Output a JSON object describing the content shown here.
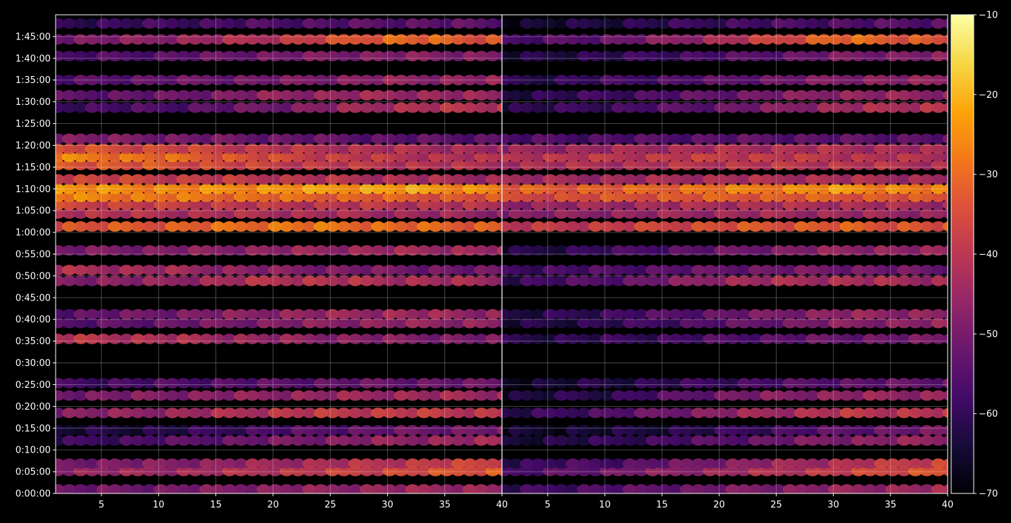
{
  "chart_data": {
    "type": "heatmap",
    "title": "",
    "colormap": "inferno",
    "background": "#000000",
    "foreground": "#ffffff",
    "grid": true,
    "panels": [
      {
        "name": "",
        "xlim": [
          1,
          40
        ],
        "xticks": [
          "5",
          "10",
          "15",
          "20",
          "25",
          "30",
          "35",
          "40"
        ]
      },
      {
        "name": "",
        "xlim": [
          1,
          40
        ],
        "xticks": [
          "5",
          "10",
          "15",
          "20",
          "25",
          "30",
          "35",
          "40"
        ]
      }
    ],
    "y_axis": {
      "ylim_seconds": [
        0,
        6600
      ],
      "tick_labels": [
        "0:00:00",
        "0:05:00",
        "0:10:00",
        "0:15:00",
        "0:20:00",
        "0:25:00",
        "0:30:00",
        "0:35:00",
        "0:40:00",
        "0:45:00",
        "0:50:00",
        "0:55:00",
        "1:00:00",
        "1:05:00",
        "1:10:00",
        "1:15:00",
        "1:20:00",
        "1:25:00",
        "1:30:00",
        "1:35:00",
        "1:40:00",
        "1:45:00"
      ]
    },
    "colorbar": {
      "range": [
        -70,
        -10
      ],
      "tick_labels": [
        "−70",
        "−60",
        "−50",
        "−40",
        "−30",
        "−20",
        "−10"
      ]
    },
    "rows": [
      {
        "t": 55,
        "level": [
          -52,
          -50,
          -47,
          -45,
          -44
        ],
        "right_level": [
          -60,
          -55,
          -50,
          -46,
          -44
        ]
      },
      {
        "t": 310,
        "level": [
          -46,
          -44,
          -40,
          -36,
          -32
        ],
        "right_level": [
          -58,
          -50,
          -44,
          -38,
          -32
        ]
      },
      {
        "t": 410,
        "level": [
          -50,
          -48,
          -44,
          -40,
          -36
        ],
        "right_level": [
          -60,
          -56,
          -48,
          -42,
          -36
        ]
      },
      {
        "t": 730,
        "level": [
          -60,
          -55,
          -50,
          -46,
          -44
        ],
        "right_level": [
          -64,
          -60,
          -54,
          -48,
          -45
        ]
      },
      {
        "t": 870,
        "level": [
          -64,
          -62,
          -56,
          -52,
          -50
        ],
        "right_level": [
          -66,
          -64,
          -60,
          -54,
          -50
        ]
      },
      {
        "t": 1110,
        "level": [
          -48,
          -45,
          -40,
          -38,
          -40
        ],
        "right_level": [
          -62,
          -55,
          -46,
          -40,
          -40
        ]
      },
      {
        "t": 1350,
        "level": [
          -50,
          -48,
          -46,
          -44,
          -44
        ],
        "right_level": [
          -64,
          -60,
          -50,
          -46,
          -45
        ]
      },
      {
        "t": 1520,
        "level": [
          -58,
          -56,
          -54,
          -52,
          -52
        ],
        "right_level": [
          -66,
          -62,
          -58,
          -54,
          -52
        ]
      },
      {
        "t": 2130,
        "level": [
          -40,
          -42,
          -46,
          -48,
          -50
        ],
        "right_level": [
          -62,
          -60,
          -56,
          -52,
          -50
        ]
      },
      {
        "t": 2350,
        "level": [
          -56,
          -52,
          -48,
          -46,
          -46
        ],
        "right_level": [
          -64,
          -60,
          -54,
          -48,
          -46
        ]
      },
      {
        "t": 2470,
        "level": [
          -54,
          -50,
          -46,
          -44,
          -46
        ],
        "right_level": [
          -64,
          -58,
          -52,
          -46,
          -46
        ]
      },
      {
        "t": 2930,
        "level": [
          -48,
          -46,
          -40,
          -42,
          -44
        ],
        "right_level": [
          -60,
          -54,
          -44,
          -42,
          -44
        ]
      },
      {
        "t": 3080,
        "level": [
          -42,
          -44,
          -48,
          -50,
          -52
        ],
        "right_level": [
          -58,
          -56,
          -52,
          -50,
          -52
        ]
      },
      {
        "t": 3350,
        "level": [
          -50,
          -48,
          -46,
          -44,
          -44
        ],
        "right_level": [
          -64,
          -58,
          -52,
          -46,
          -46
        ]
      },
      {
        "t": 3680,
        "level": [
          -34,
          -32,
          -28,
          -30,
          -32
        ],
        "right_level": [
          -40,
          -38,
          -34,
          -32,
          -34
        ]
      },
      {
        "t": 3860,
        "level": [
          -40,
          -42,
          -42,
          -44,
          -46
        ],
        "right_level": [
          -48,
          -46,
          -44,
          -44,
          -46
        ]
      },
      {
        "t": 3980,
        "level": [
          -36,
          -38,
          -40,
          -40,
          -42
        ],
        "right_level": [
          -46,
          -44,
          -42,
          -42,
          -44
        ]
      },
      {
        "t": 4090,
        "level": [
          -26,
          -28,
          -30,
          -32,
          -34
        ],
        "right_level": [
          -36,
          -34,
          -32,
          -32,
          -34
        ]
      },
      {
        "t": 4200,
        "level": [
          -24,
          -26,
          -24,
          -22,
          -26
        ],
        "right_level": [
          -32,
          -32,
          -28,
          -24,
          -28
        ]
      },
      {
        "t": 4330,
        "level": [
          -36,
          -38,
          -40,
          -42,
          -44
        ],
        "right_level": [
          -44,
          -44,
          -42,
          -42,
          -44
        ]
      },
      {
        "t": 4530,
        "level": [
          -32,
          -34,
          -38,
          -40,
          -42
        ],
        "right_level": [
          -42,
          -42,
          -40,
          -40,
          -42
        ]
      },
      {
        "t": 4640,
        "level": [
          -26,
          -30,
          -36,
          -40,
          -42
        ],
        "right_level": [
          -40,
          -40,
          -38,
          -40,
          -42
        ]
      },
      {
        "t": 4750,
        "level": [
          -34,
          -36,
          -40,
          -42,
          -44
        ],
        "right_level": [
          -46,
          -44,
          -42,
          -42,
          -44
        ]
      },
      {
        "t": 4890,
        "level": [
          -48,
          -50,
          -52,
          -54,
          -54
        ],
        "right_level": [
          -56,
          -56,
          -54,
          -54,
          -54
        ]
      },
      {
        "t": 5320,
        "level": [
          -58,
          -56,
          -50,
          -42,
          -40
        ],
        "right_level": [
          -62,
          -58,
          -52,
          -44,
          -40
        ]
      },
      {
        "t": 5490,
        "level": [
          -54,
          -52,
          -46,
          -44,
          -46
        ],
        "right_level": [
          -62,
          -58,
          -52,
          -46,
          -46
        ]
      },
      {
        "t": 5700,
        "level": [
          -56,
          -52,
          -50,
          -46,
          -46
        ],
        "right_level": [
          -62,
          -58,
          -54,
          -48,
          -46
        ]
      },
      {
        "t": 6030,
        "level": [
          -58,
          -54,
          -50,
          -48,
          -48
        ],
        "right_level": [
          -64,
          -60,
          -56,
          -50,
          -48
        ]
      },
      {
        "t": 6260,
        "level": [
          -50,
          -46,
          -40,
          -30,
          -34
        ],
        "right_level": [
          -58,
          -52,
          -42,
          -30,
          -34
        ]
      },
      {
        "t": 6480,
        "level": [
          -60,
          -58,
          -56,
          -54,
          -54
        ],
        "right_level": [
          -66,
          -62,
          -58,
          -56,
          -54
        ]
      }
    ]
  }
}
